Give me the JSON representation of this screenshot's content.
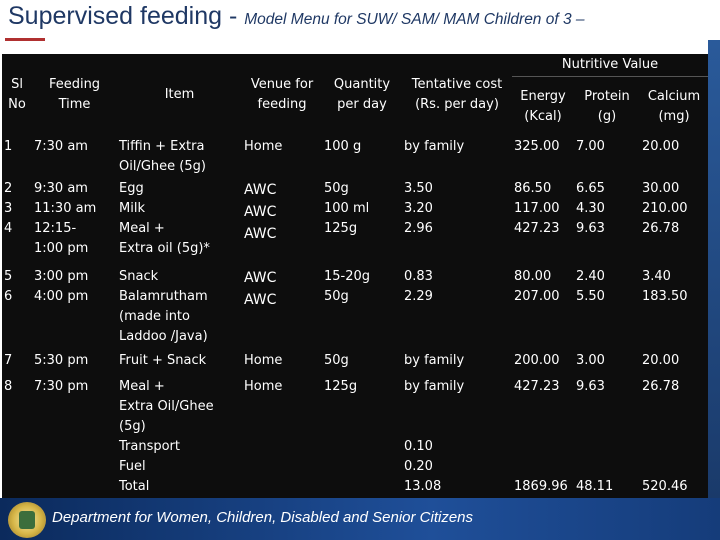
{
  "title": {
    "main": "Supervised feeding - ",
    "sub": "Model Menu for SUW/ SAM/ MAM Children of 3 –"
  },
  "headers": {
    "sl_no": "Sl\nNo",
    "feeding_time": "Feeding\nTime",
    "item": "Item",
    "venue": "Venue for\nfeeding",
    "quantity": "Quantity\nper day",
    "cost": "Tentative cost\n(Rs. per day)",
    "nutritive_value": "Nutritive Value",
    "energy": "Energy\n(Kcal)",
    "protein": "Protein\n(g)",
    "calcium": "Calcium\n(mg)"
  },
  "rows": [
    {
      "sl": "1",
      "time": "7:30 am",
      "item": "Tiffin + Extra\nOil/Ghee (5g)",
      "venue": "Home",
      "qty": "100 g",
      "cost": "by family",
      "energy": "325.00",
      "protein": "7.00",
      "calcium": "20.00"
    },
    {
      "sl": "2\n3\n4",
      "time": "9:30 am\n11:30 am\n12:15-\n1:00 pm",
      "item": "Egg\nMilk\nMeal +\nExtra oil (5g)*",
      "venue": "AWC\nAWC\nAWC",
      "qty": "50g\n100 ml\n125g",
      "cost": "3.50\n3.20\n2.96",
      "energy": "86.50\n117.00\n427.23",
      "protein": "6.65\n4.30\n9.63",
      "calcium": "30.00\n210.00\n26.78"
    },
    {
      "sl": "5\n6",
      "time": "3:00 pm\n4:00 pm",
      "item": "Snack\nBalamrutham\n(made into\nLaddoo /Java)",
      "venue": "AWC\nAWC",
      "qty": "15-20g\n50g",
      "cost": "0.83\n2.29",
      "energy": "80.00\n207.00",
      "protein": "2.40\n5.50",
      "calcium": "3.40\n183.50"
    },
    {
      "sl": "7",
      "time": "5:30 pm",
      "item": "Fruit + Snack",
      "venue": "Home",
      "qty": "50g",
      "cost": "by  family",
      "energy": "200.00",
      "protein": "3.00",
      "calcium": "20.00"
    },
    {
      "sl": "8",
      "time": "7:30 pm",
      "item": "Meal +\nExtra Oil/Ghee\n(5g)\nTransport\nFuel\nTotal",
      "venue": "Home",
      "qty": "125g",
      "cost": "by family\n\n\n0.10\n0.20\n13.08",
      "energy": "427.23\n\n\n\n\n1869.96",
      "protein": "9.63\n\n\n\n\n48.11",
      "calcium": "26.78\n\n\n\n\n520.46"
    }
  ],
  "footer": {
    "department": "Department for Women, Children, Disabled and Senior Citizens"
  },
  "colors": {
    "title": "#1f3864",
    "table_bg": "#0d0d0d",
    "footer": "#1f4f99"
  }
}
